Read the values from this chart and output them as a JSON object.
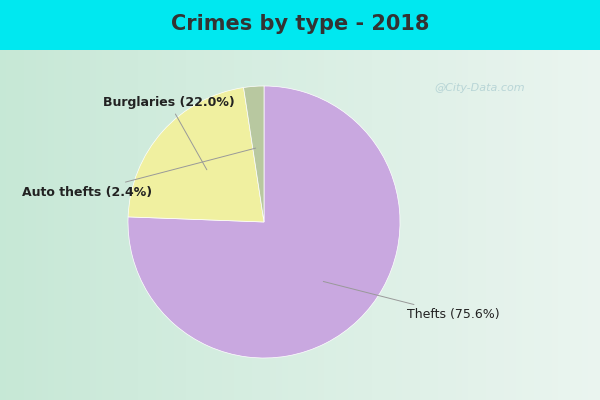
{
  "title": "Crimes by type - 2018",
  "slices": [
    {
      "label": "Thefts",
      "pct": 75.6,
      "color": "#c9a8e0"
    },
    {
      "label": "Burglaries",
      "pct": 22.0,
      "color": "#f0f0a0"
    },
    {
      "label": "Auto thefts",
      "pct": 2.4,
      "color": "#b8c8a0"
    }
  ],
  "background_cyan": "#00e8f0",
  "title_color": "#333333",
  "title_fontsize": 15,
  "label_fontsize": 9,
  "watermark": "@City-Data.com",
  "annotations": [
    {
      "label": "Thefts (75.6%)",
      "fontweight": "normal"
    },
    {
      "label": "Burglaries (22.0%)",
      "fontweight": "bold"
    },
    {
      "label": "Auto thefts (2.4%)",
      "fontweight": "bold"
    }
  ]
}
